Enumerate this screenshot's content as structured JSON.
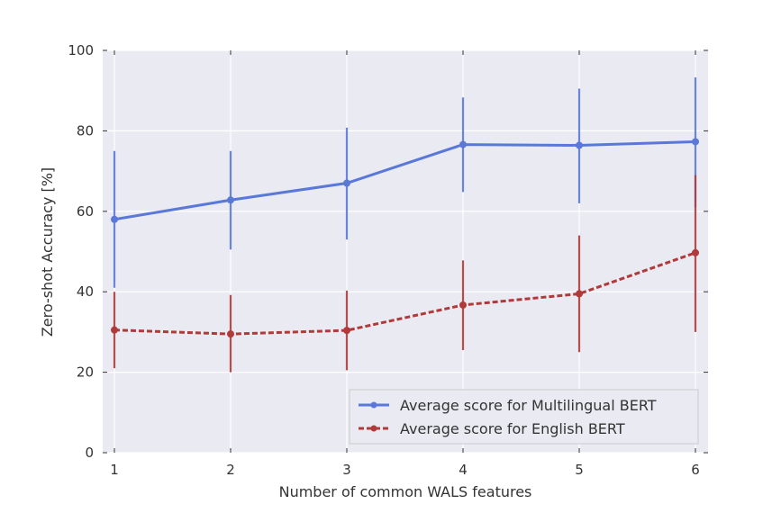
{
  "chart_data": {
    "type": "line",
    "xlabel": "Number of common WALS features",
    "ylabel": "Zero-shot Accuracy [%]",
    "x": [
      1,
      2,
      3,
      4,
      5,
      6
    ],
    "xlim": [
      0.9,
      6.1
    ],
    "ylim": [
      0,
      100
    ],
    "xticks": [
      "1",
      "2",
      "3",
      "4",
      "5",
      "6"
    ],
    "yticks": [
      "0",
      "20",
      "40",
      "60",
      "80",
      "100"
    ],
    "grid": true,
    "legend_position": "lower-right",
    "series": [
      {
        "name": "Average score for Multilingual BERT",
        "color": "#5a78d8",
        "line_style": "solid",
        "values": [
          58.0,
          62.8,
          67.0,
          76.6,
          76.4,
          77.3
        ],
        "error_low": [
          41.0,
          50.5,
          53.0,
          64.8,
          62.0,
          61.0
        ],
        "error_high": [
          75.0,
          75.0,
          80.8,
          88.3,
          90.5,
          93.3
        ]
      },
      {
        "name": "Average score for English BERT",
        "color": "#b03a3a",
        "line_style": "dashed",
        "values": [
          30.5,
          29.5,
          30.4,
          36.7,
          39.5,
          49.7
        ],
        "error_low": [
          21.0,
          20.0,
          20.5,
          25.5,
          25.0,
          30.0
        ],
        "error_high": [
          40.0,
          39.2,
          40.3,
          47.8,
          54.0,
          69.0
        ]
      }
    ]
  }
}
